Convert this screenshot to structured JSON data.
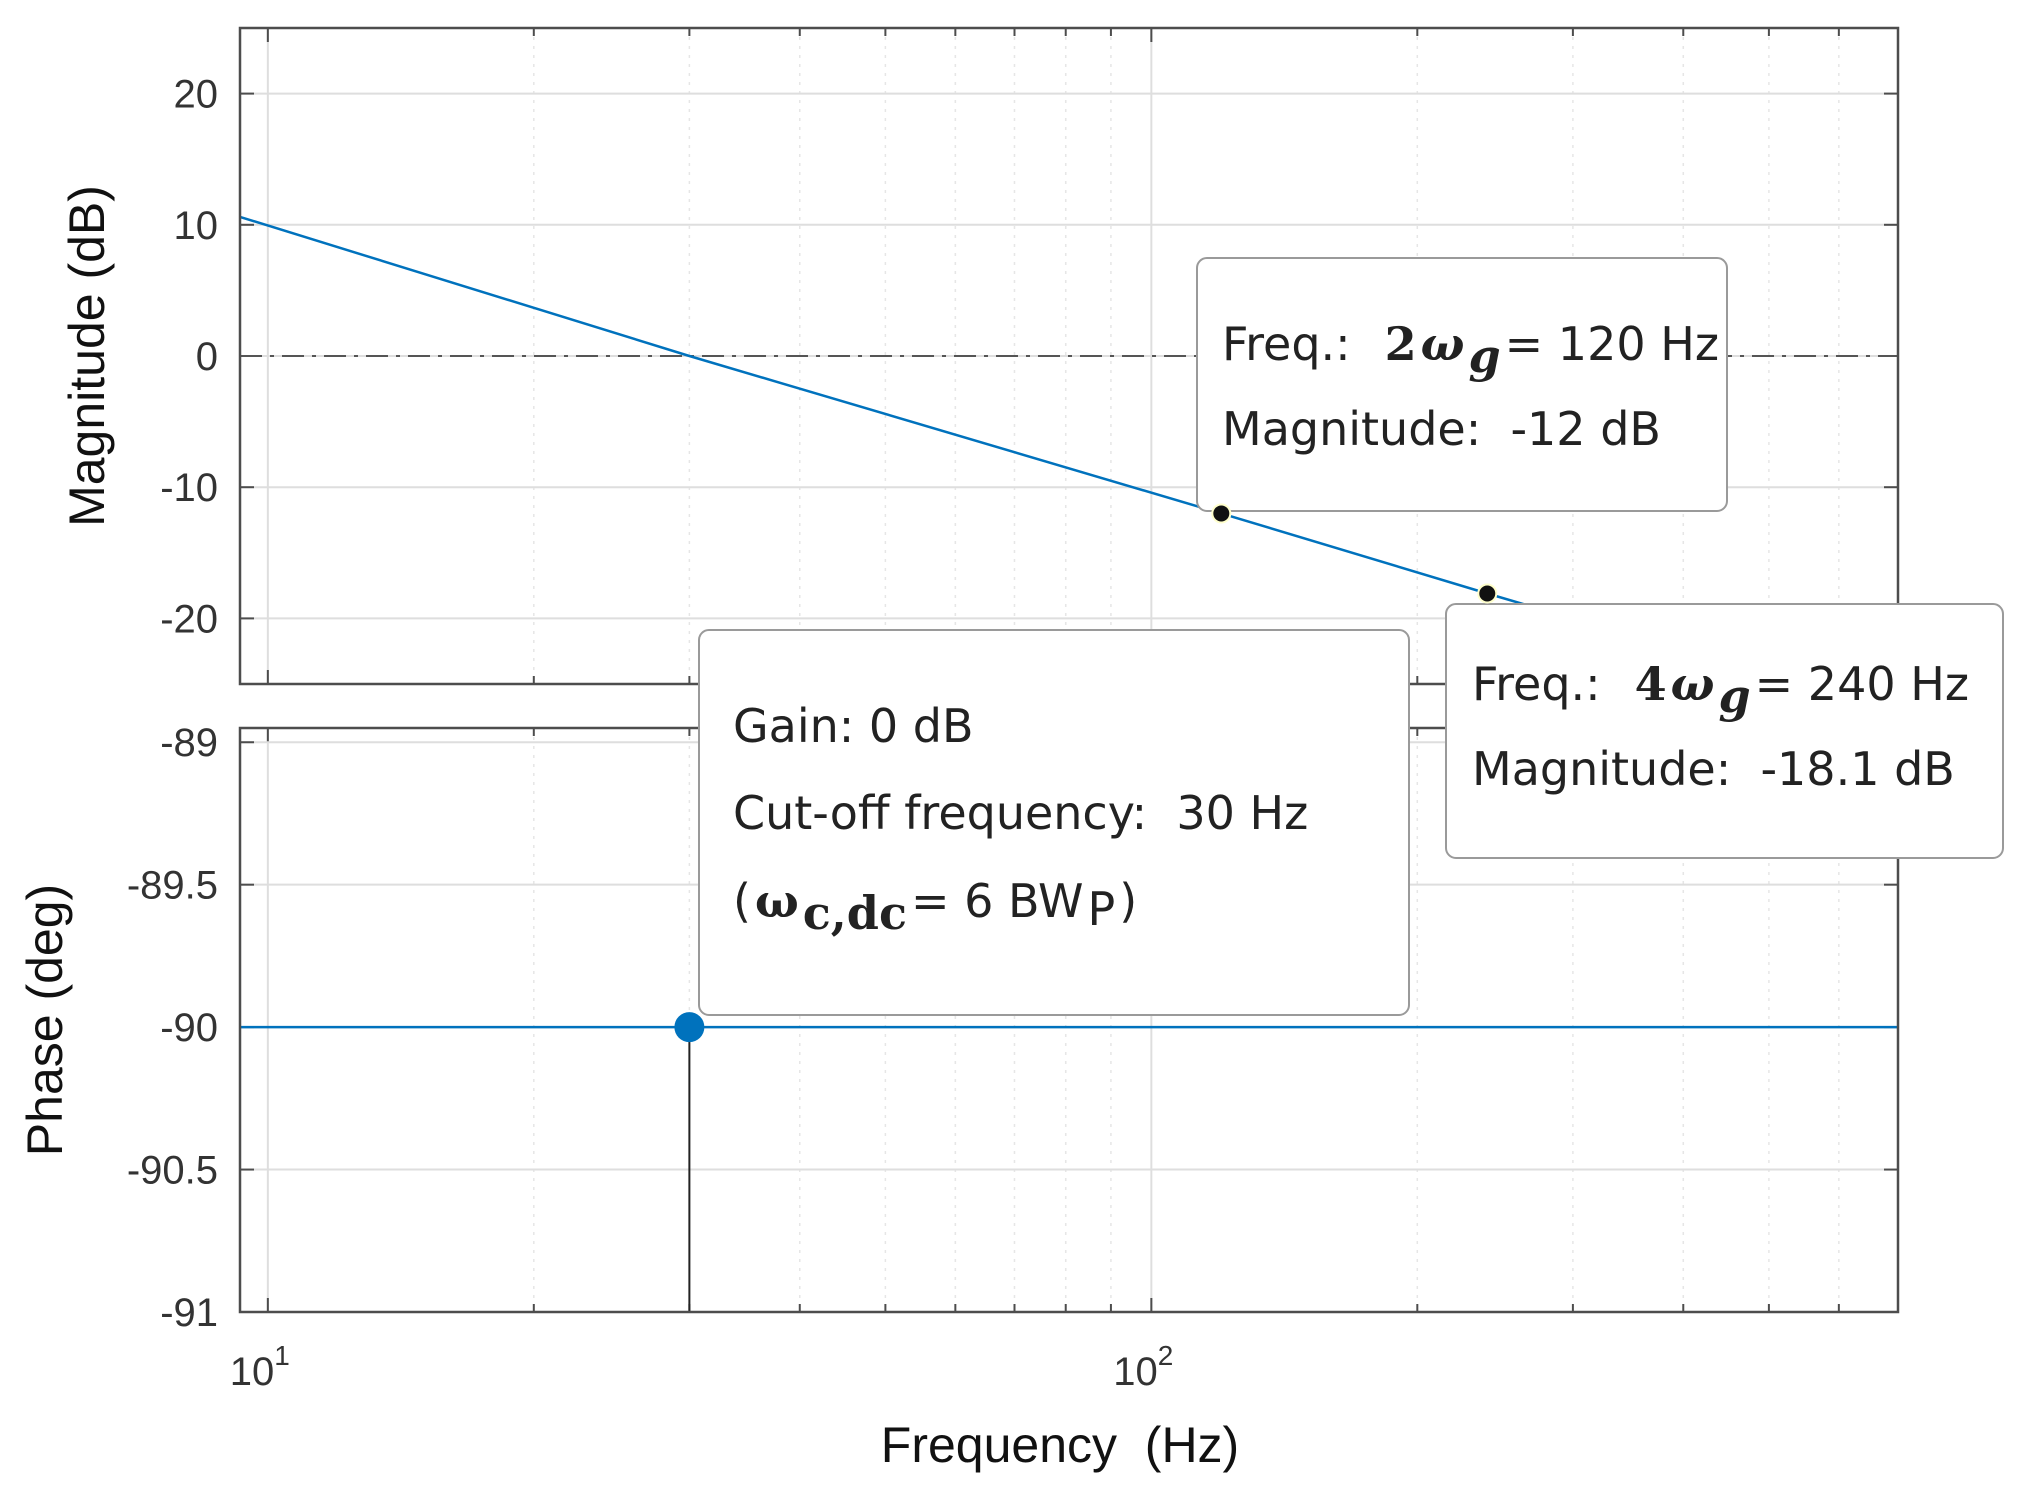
{
  "chart_data": [
    {
      "type": "line",
      "panel": "magnitude",
      "ylabel": "Magnitude (dB)",
      "xscale": "log",
      "xlim": [
        9.3,
        700
      ],
      "ylim": [
        -25,
        25
      ],
      "yticks": [
        20,
        10,
        0,
        -10,
        -20
      ],
      "grid": true,
      "reference_line": {
        "y": 0,
        "style": "dash-dot"
      },
      "series": [
        {
          "x": [
            9.3,
            30,
            120,
            240,
            700
          ],
          "y": [
            10.6,
            0,
            -12,
            -18.1,
            -27.3
          ]
        }
      ],
      "markers": [
        {
          "x": 120,
          "y": -12
        },
        {
          "x": 240,
          "y": -18.1
        }
      ]
    },
    {
      "type": "line",
      "panel": "phase",
      "ylabel": "Phase (deg)",
      "xlabel": "Frequency  (Hz)",
      "xscale": "log",
      "xlim": [
        9.3,
        700
      ],
      "ylim": [
        -91,
        -88.95
      ],
      "yticks": [
        -89,
        -89.5,
        -90,
        -90.5,
        -91
      ],
      "xticks": [
        {
          "value": 10,
          "base": "10",
          "exp": "1"
        },
        {
          "value": 100,
          "base": "10",
          "exp": "2"
        }
      ],
      "grid": true,
      "series": [
        {
          "x": [
            9.3,
            700
          ],
          "y": [
            -90,
            -90
          ]
        }
      ],
      "markers": [
        {
          "x": 30,
          "y": -90,
          "stem": true
        }
      ]
    }
  ],
  "annotations": {
    "tip1": {
      "line1_prefix": "Freq.:",
      "line1_coef": "2",
      "line1_symbol": "ω",
      "line1_sub": "g",
      "line1_suffix": "= 120 Hz",
      "line2": "Magnitude:  -12 dB"
    },
    "tip2": {
      "line1_prefix": "Freq.:",
      "line1_coef": "4",
      "line1_symbol": "ω",
      "line1_sub": "g",
      "line1_suffix": "= 240 Hz",
      "line2": "Magnitude:  -18.1 dB"
    },
    "tip3": {
      "line1": "Gain: 0 dB",
      "line2": "Cut-off frequency:  30 Hz",
      "line3_open": "(",
      "line3_symbol": "ω",
      "line3_sub": "c,dc",
      "line3_suffix": "= 6 BW",
      "line3_sub2": "P",
      "line3_close": ")"
    }
  },
  "colors": {
    "line": "#0072BD",
    "marker_blue": "#0072BD",
    "marker_black": "#111111",
    "grid": "#e3e3e3",
    "axes": "#4d4d4d"
  }
}
